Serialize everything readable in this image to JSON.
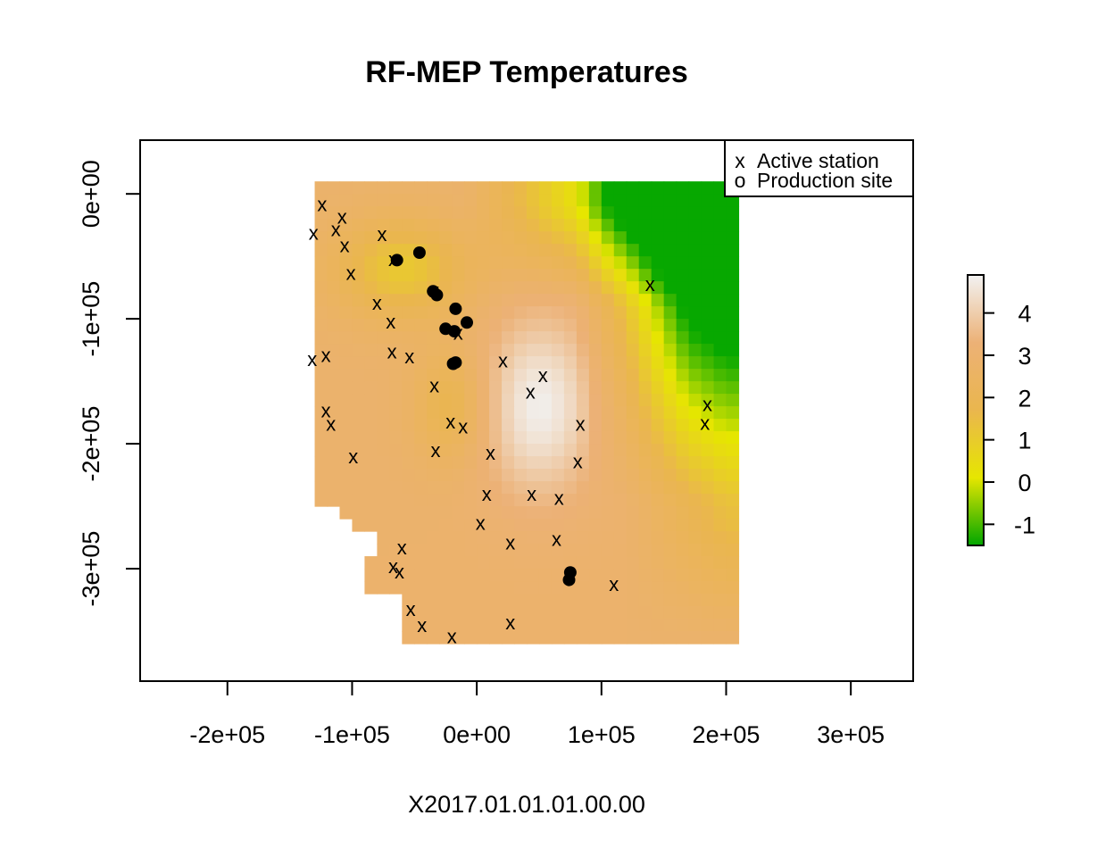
{
  "chart_data": {
    "type": "heatmap",
    "title": "RF-MEP Temperatures",
    "xlabel": "X2017.01.01.01.00.00",
    "ylabel": "",
    "xlim": [
      -270000,
      350000
    ],
    "ylim": [
      -390000,
      43000
    ],
    "x_ticks": [
      {
        "value": -200000,
        "label": "-2e+05"
      },
      {
        "value": -100000,
        "label": "-1e+05"
      },
      {
        "value": 0,
        "label": "0e+00"
      },
      {
        "value": 100000,
        "label": "1e+05"
      },
      {
        "value": 200000,
        "label": "2e+05"
      },
      {
        "value": 300000,
        "label": "3e+05"
      }
    ],
    "y_ticks": [
      {
        "value": 0,
        "label": "0e+00"
      },
      {
        "value": -100000,
        "label": "-1e+05"
      },
      {
        "value": -200000,
        "label": "-2e+05"
      },
      {
        "value": -300000,
        "label": "-3e+05"
      }
    ],
    "colorbar": {
      "range": [
        -1.5,
        4.9
      ],
      "ticks": [
        {
          "value": -1,
          "label": "-1"
        },
        {
          "value": 0,
          "label": "0"
        },
        {
          "value": 1,
          "label": "1"
        },
        {
          "value": 2,
          "label": "2"
        },
        {
          "value": 3,
          "label": "3"
        },
        {
          "value": 4,
          "label": "4"
        }
      ],
      "colors": [
        "#00a600",
        "#e6e600",
        "#eab64e",
        "#ecb176",
        "#f2f2f2"
      ]
    },
    "legend": {
      "position": "top-right",
      "entries": [
        {
          "symbol": "x",
          "label": "Active station"
        },
        {
          "symbol": "o",
          "label": "Production site"
        }
      ]
    },
    "stations": [
      [
        -124000,
        -8000
      ],
      [
        -108000,
        -18000
      ],
      [
        -113000,
        -28000
      ],
      [
        -131000,
        -31000
      ],
      [
        -106000,
        -41000
      ],
      [
        -76000,
        -32000
      ],
      [
        -67000,
        -52000
      ],
      [
        -101000,
        -63000
      ],
      [
        -34000,
        -77000
      ],
      [
        -80000,
        -87000
      ],
      [
        -69000,
        -102000
      ],
      [
        -121000,
        -129000
      ],
      [
        -132000,
        -132000
      ],
      [
        -68000,
        -126000
      ],
      [
        -54000,
        -130000
      ],
      [
        -15000,
        -111000
      ],
      [
        -34000,
        -153000
      ],
      [
        21000,
        -133000
      ],
      [
        53000,
        -145000
      ],
      [
        43000,
        -158000
      ],
      [
        -121000,
        -173000
      ],
      [
        -117000,
        -184000
      ],
      [
        -21000,
        -182000
      ],
      [
        -11000,
        -186000
      ],
      [
        83000,
        -184000
      ],
      [
        185000,
        -168000
      ],
      [
        183000,
        -183000
      ],
      [
        -99000,
        -210000
      ],
      [
        -33000,
        -205000
      ],
      [
        11000,
        -207000
      ],
      [
        81000,
        -214000
      ],
      [
        8000,
        -240000
      ],
      [
        44000,
        -240000
      ],
      [
        66000,
        -243000
      ],
      [
        3000,
        -263000
      ],
      [
        64000,
        -276000
      ],
      [
        27000,
        -279000
      ],
      [
        -60000,
        -283000
      ],
      [
        -67000,
        -298000
      ],
      [
        -62000,
        -302000
      ],
      [
        110000,
        -312000
      ],
      [
        -53000,
        -332000
      ],
      [
        -44000,
        -345000
      ],
      [
        27000,
        -343000
      ],
      [
        -20000,
        -354000
      ],
      [
        139000,
        -72000
      ]
    ],
    "production_sites": [
      [
        -64000,
        -53000
      ],
      [
        -46000,
        -47000
      ],
      [
        -32000,
        -81000
      ],
      [
        -17000,
        -92000
      ],
      [
        -8000,
        -103000
      ],
      [
        -25000,
        -108000
      ],
      [
        -18000,
        -110000
      ],
      [
        -19000,
        -136000
      ],
      [
        -17000,
        -135000
      ],
      [
        75000,
        -303000
      ],
      [
        74000,
        -309000
      ],
      [
        -35000,
        -78000
      ]
    ]
  }
}
